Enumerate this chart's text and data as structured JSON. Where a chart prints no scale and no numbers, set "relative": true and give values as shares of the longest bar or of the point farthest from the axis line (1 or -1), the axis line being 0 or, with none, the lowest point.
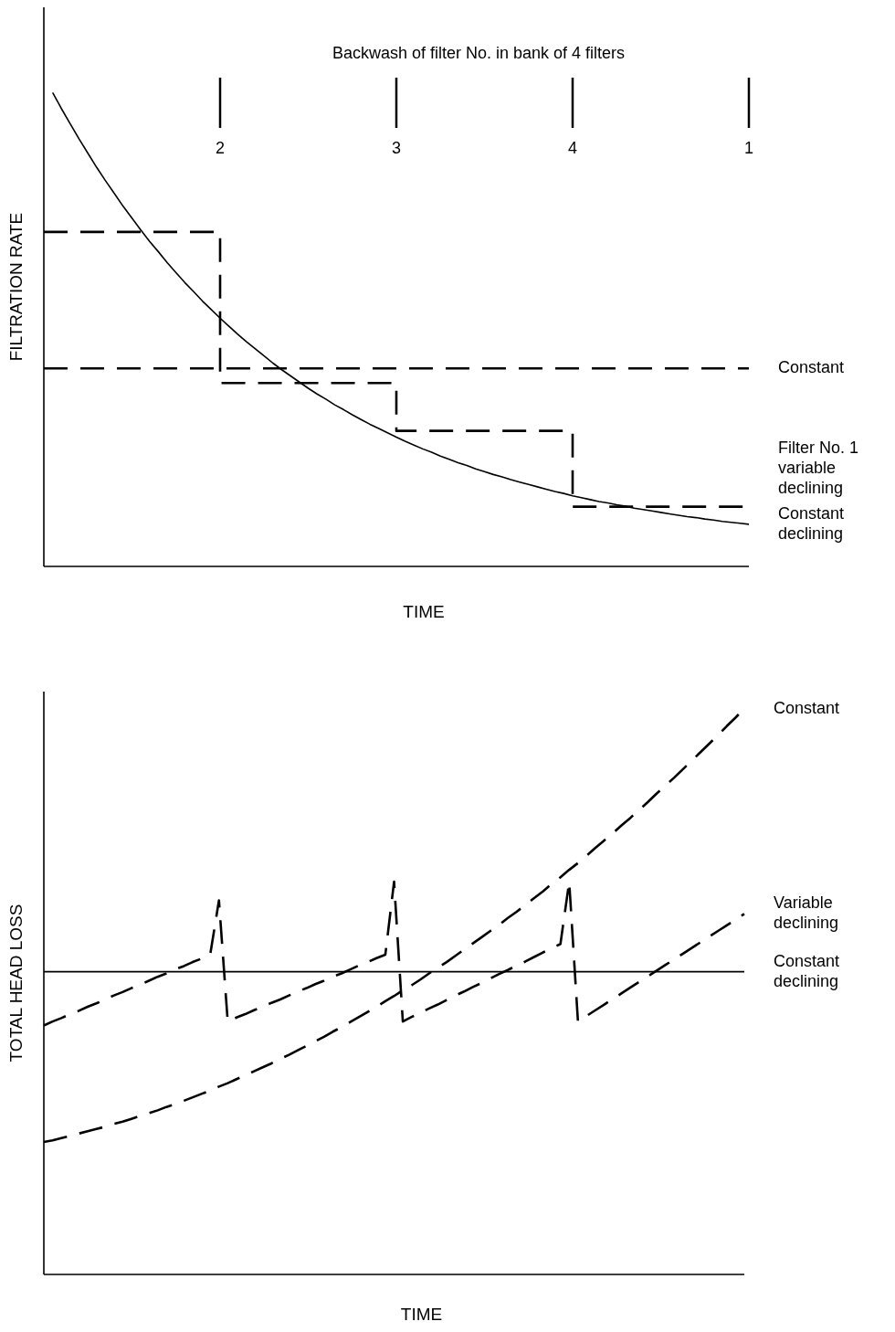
{
  "chart_data": [
    {
      "type": "line",
      "relative": true,
      "ylabel": "FILTRATION RATE",
      "xlabel": "TIME",
      "categories": [
        null,
        null,
        null,
        null,
        null,
        null,
        null,
        null,
        null,
        null,
        null,
        null,
        null,
        null,
        null,
        null,
        null,
        null,
        null,
        null,
        "2",
        null,
        null,
        null,
        null,
        null,
        null,
        null,
        null,
        null,
        null,
        null,
        null,
        null,
        null,
        null,
        null,
        null,
        null,
        null,
        "3",
        null,
        null,
        null,
        null,
        null,
        null,
        null,
        null,
        null,
        null,
        null,
        null,
        null,
        null,
        null,
        null,
        null,
        null,
        null,
        "4",
        null,
        null,
        null,
        null,
        null,
        null,
        null,
        null,
        null,
        null,
        null,
        null,
        null,
        null,
        null,
        null,
        null,
        null,
        null,
        "1"
      ],
      "tick_labels": "x",
      "legend": false,
      "annotations": [
        "Backwash of filter No. in bank of 4 filters"
      ],
      "series": [
        {
          "name": "Constant",
          "color": "#000000",
          "line_style": "dashed",
          "values": [
            0.418,
            0.418,
            0.418,
            0.418,
            0.418,
            0.418,
            0.418,
            0.418,
            0.418,
            0.418,
            0.418,
            0.418,
            0.418,
            0.418,
            0.418,
            0.418,
            0.418,
            0.418,
            0.418,
            0.418,
            0.418,
            0.418,
            0.418,
            0.418,
            0.418,
            0.418,
            0.418,
            0.418,
            0.418,
            0.418,
            0.418,
            0.418,
            0.418,
            0.418,
            0.418,
            0.418,
            0.418,
            0.418,
            0.418,
            0.418,
            0.418,
            0.418,
            0.418,
            0.418,
            0.418,
            0.418,
            0.418,
            0.418,
            0.418,
            0.418,
            0.418,
            0.418,
            0.418,
            0.418,
            0.418,
            0.418,
            0.418,
            0.418,
            0.418,
            0.418,
            0.418,
            0.418,
            0.418,
            0.418,
            0.418,
            0.418,
            0.418,
            0.418,
            0.418,
            0.418,
            0.418,
            0.418,
            0.418,
            0.418,
            0.418,
            0.418,
            0.418,
            0.418,
            0.418,
            0.418,
            0.418
          ]
        },
        {
          "name": "Filter No. 1\nvariable\ndeclining",
          "type": "step",
          "color": "#000000",
          "line_style": "dashed",
          "values": [
            0.706,
            0.706,
            0.706,
            0.706,
            0.706,
            0.706,
            0.706,
            0.706,
            0.706,
            0.706,
            0.706,
            0.706,
            0.706,
            0.706,
            0.706,
            0.706,
            0.706,
            0.706,
            0.706,
            0.706,
            0.387,
            0.387,
            0.387,
            0.387,
            0.387,
            0.387,
            0.387,
            0.387,
            0.387,
            0.387,
            0.387,
            0.387,
            0.387,
            0.387,
            0.387,
            0.387,
            0.387,
            0.387,
            0.387,
            0.387,
            0.286,
            0.286,
            0.286,
            0.286,
            0.286,
            0.286,
            0.286,
            0.286,
            0.286,
            0.286,
            0.286,
            0.286,
            0.286,
            0.286,
            0.286,
            0.286,
            0.286,
            0.286,
            0.286,
            0.286,
            0.126,
            0.126,
            0.126,
            0.126,
            0.126,
            0.126,
            0.126,
            0.126,
            0.126,
            0.126,
            0.126,
            0.126,
            0.126,
            0.126,
            0.126,
            0.126,
            0.126,
            0.126,
            0.126,
            0.126,
            0.126
          ]
        },
        {
          "name": "Constant\ndeclining",
          "color": "#000000",
          "line_style": "solid",
          "values": [
            null,
            1.0,
            0.966,
            0.934,
            0.902,
            0.872,
            0.842,
            0.814,
            0.787,
            0.76,
            0.735,
            0.71,
            0.686,
            0.664,
            0.641,
            0.62,
            0.599,
            0.58,
            0.56,
            0.542,
            0.524,
            0.507,
            0.49,
            0.474,
            0.459,
            0.444,
            0.429,
            0.415,
            0.402,
            0.389,
            0.376,
            0.364,
            0.353,
            0.341,
            0.331,
            0.32,
            0.31,
            0.3,
            0.291,
            0.282,
            0.273,
            0.264,
            0.256,
            0.248,
            0.241,
            0.233,
            0.226,
            0.219,
            0.213,
            0.206,
            0.2,
            0.194,
            0.189,
            0.183,
            0.178,
            0.173,
            0.168,
            0.163,
            0.158,
            0.154,
            0.149,
            0.145,
            0.141,
            0.137,
            0.134,
            0.13,
            0.127,
            0.123,
            0.12,
            0.117,
            0.114,
            0.111,
            0.108,
            0.105,
            0.103,
            0.1,
            0.098,
            0.095,
            0.093,
            0.091,
            0.089
          ]
        }
      ]
    },
    {
      "type": "line",
      "relative": true,
      "ylabel": "TOTAL HEAD LOSS",
      "xlabel": "TIME",
      "tick_labels": false,
      "legend": false,
      "categories": [
        null,
        null,
        null,
        null,
        null,
        null,
        null,
        null,
        null,
        null,
        null,
        null,
        null,
        null,
        null,
        null,
        null,
        null,
        null,
        null,
        null,
        null,
        null,
        null,
        null,
        null,
        null,
        null,
        null,
        null,
        null,
        null,
        null,
        null,
        null,
        null,
        null,
        null,
        null,
        null,
        null,
        null,
        null,
        null,
        null,
        null,
        null,
        null,
        null,
        null,
        null,
        null,
        null,
        null,
        null,
        null,
        null,
        null,
        null,
        null,
        null,
        null,
        null,
        null,
        null,
        null,
        null,
        null,
        null,
        null,
        null,
        null,
        null,
        null,
        null,
        null,
        null,
        null,
        null,
        null,
        null
      ],
      "series": [
        {
          "name": "Constant",
          "color": "#000000",
          "line_style": "dashed",
          "values": [
            0.234,
            0.237,
            0.241,
            0.245,
            0.249,
            0.253,
            0.257,
            0.261,
            0.266,
            0.27,
            0.275,
            0.28,
            0.285,
            0.29,
            0.296,
            0.301,
            0.307,
            0.313,
            0.319,
            0.325,
            0.332,
            0.338,
            0.345,
            0.352,
            0.359,
            0.366,
            0.373,
            0.381,
            0.388,
            0.396,
            0.404,
            0.412,
            0.42,
            0.429,
            0.437,
            0.446,
            0.455,
            0.464,
            0.473,
            0.483,
            0.492,
            0.502,
            0.511,
            0.521,
            0.532,
            0.542,
            0.552,
            0.563,
            0.574,
            0.585,
            0.596,
            0.607,
            0.618,
            0.63,
            0.641,
            0.653,
            0.665,
            0.677,
            0.69,
            0.702,
            0.715,
            0.727,
            0.74,
            0.754,
            0.767,
            0.78,
            0.794,
            0.807,
            0.821,
            0.835,
            0.85,
            0.864,
            0.878,
            0.893,
            0.908,
            0.923,
            0.938,
            0.953,
            0.969,
            0.984,
            1.0
          ]
        },
        {
          "name": "Variable\ndeclining",
          "color": "#000000",
          "line_style": "dashed",
          "values": [
            0.44,
            0.447,
            0.453,
            0.46,
            0.466,
            0.473,
            0.479,
            0.486,
            0.493,
            0.499,
            0.506,
            0.512,
            0.519,
            0.526,
            0.532,
            0.539,
            0.545,
            0.552,
            0.558,
            0.565,
            0.661,
            0.447,
            0.454,
            0.46,
            0.467,
            0.473,
            0.48,
            0.486,
            0.493,
            0.5,
            0.506,
            0.513,
            0.519,
            0.526,
            0.532,
            0.539,
            0.546,
            0.552,
            0.559,
            0.565,
            0.694,
            0.447,
            0.455,
            0.462,
            0.47,
            0.477,
            0.485,
            0.493,
            0.5,
            0.508,
            0.515,
            0.523,
            0.531,
            0.538,
            0.546,
            0.553,
            0.561,
            0.569,
            0.576,
            0.584,
            0.694,
            0.447,
            0.457,
            0.467,
            0.477,
            0.487,
            0.497,
            0.507,
            0.517,
            0.527,
            0.537,
            0.547,
            0.557,
            0.567,
            0.577,
            0.587,
            0.597,
            0.607,
            0.617,
            0.627,
            0.637
          ]
        },
        {
          "name": "Constant\ndeclining",
          "color": "#000000",
          "line_style": "solid",
          "values": [
            0.535,
            0.535,
            0.535,
            0.535,
            0.535,
            0.535,
            0.535,
            0.535,
            0.535,
            0.535,
            0.535,
            0.535,
            0.535,
            0.535,
            0.535,
            0.535,
            0.535,
            0.535,
            0.535,
            0.535,
            0.535,
            0.535,
            0.535,
            0.535,
            0.535,
            0.535,
            0.535,
            0.535,
            0.535,
            0.535,
            0.535,
            0.535,
            0.535,
            0.535,
            0.535,
            0.535,
            0.535,
            0.535,
            0.535,
            0.535,
            0.535,
            0.535,
            0.535,
            0.535,
            0.535,
            0.535,
            0.535,
            0.535,
            0.535,
            0.535,
            0.535,
            0.535,
            0.535,
            0.535,
            0.535,
            0.535,
            0.535,
            0.535,
            0.535,
            0.535,
            0.535,
            0.535,
            0.535,
            0.535,
            0.535,
            0.535,
            0.535,
            0.535,
            0.535,
            0.535,
            0.535,
            0.535,
            0.535,
            0.535,
            0.535,
            0.535,
            0.535,
            0.535,
            0.535,
            0.535,
            0.535
          ]
        }
      ]
    }
  ]
}
